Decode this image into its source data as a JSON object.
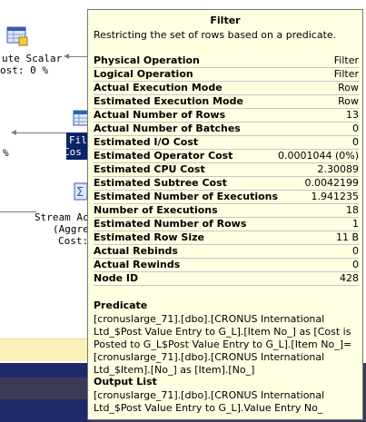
{
  "plan": {
    "compute_scalar_label": "ute Scalar",
    "compute_scalar_cost": "ost: 0 %",
    "filter_label_line1": "Fil",
    "filter_label_line2": "Cos",
    "left_percent": "%",
    "stream_aggregate_line1": "Stream Ac",
    "stream_aggregate_line2": "(Aggre",
    "stream_aggregate_line3": "Cost:"
  },
  "tooltip": {
    "title": "Filter",
    "subtitle": "Restricting the set of rows based on a predicate.",
    "properties": [
      {
        "label": "Physical Operation",
        "value": "Filter"
      },
      {
        "label": "Logical Operation",
        "value": "Filter"
      },
      {
        "label": "Actual Execution Mode",
        "value": "Row"
      },
      {
        "label": "Estimated Execution Mode",
        "value": "Row"
      },
      {
        "label": "Actual Number of Rows",
        "value": "13"
      },
      {
        "label": "Actual Number of Batches",
        "value": "0"
      },
      {
        "label": "Estimated I/O Cost",
        "value": "0"
      },
      {
        "label": "Estimated Operator Cost",
        "value": "0.0001044 (0%)"
      },
      {
        "label": "Estimated CPU Cost",
        "value": "2.30089"
      },
      {
        "label": "Estimated Subtree Cost",
        "value": "0.0042199"
      },
      {
        "label": "Estimated Number of Executions",
        "value": "1.941235"
      },
      {
        "label": "Number of Executions",
        "value": "18"
      },
      {
        "label": "Estimated Number of Rows",
        "value": "1"
      },
      {
        "label": "Estimated Row Size",
        "value": "11 B"
      },
      {
        "label": "Actual Rebinds",
        "value": "0"
      },
      {
        "label": "Actual Rewinds",
        "value": "0"
      },
      {
        "label": "Node ID",
        "value": "428"
      }
    ],
    "predicate_heading": "Predicate",
    "predicate_text": "[cronuslarge_71].[dbo].[CRONUS International Ltd_$Post Value Entry to G_L].[Item No_] as [Cost is Posted to G_L$Post Value Entry to G_L].[Item No_]=[cronuslarge_71].[dbo].[CRONUS International Ltd_$Item].[No_] as [Item].[No_]",
    "output_heading": "Output List",
    "output_text": "[cronuslarge_71].[dbo].[CRONUS International Ltd_$Post Value Entry to G_L].Value Entry No_"
  }
}
